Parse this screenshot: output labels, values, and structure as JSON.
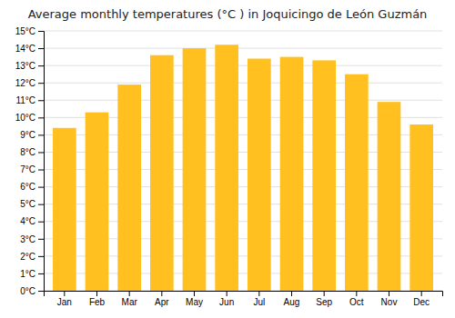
{
  "chart_data": {
    "type": "bar",
    "title": "Average monthly temperatures (°C ) in Joquicingo de León Guzmán",
    "categories": [
      "Jan",
      "Feb",
      "Mar",
      "Apr",
      "May",
      "Jun",
      "Jul",
      "Aug",
      "Sep",
      "Oct",
      "Nov",
      "Dec"
    ],
    "values": [
      9.4,
      10.3,
      11.9,
      13.6,
      14.0,
      14.2,
      13.4,
      13.5,
      13.3,
      12.5,
      10.9,
      9.6
    ],
    "color": "#FFC020",
    "ylim": [
      0,
      15
    ],
    "yticks": [
      {
        "value": 0,
        "label": "0°C"
      },
      {
        "value": 1,
        "label": "1°C"
      },
      {
        "value": 2,
        "label": "2°C"
      },
      {
        "value": 3,
        "label": "3°C"
      },
      {
        "value": 4,
        "label": "4°C"
      },
      {
        "value": 5,
        "label": "5°C"
      },
      {
        "value": 6,
        "label": "6°C"
      },
      {
        "value": 7,
        "label": "7°C"
      },
      {
        "value": 8,
        "label": "8°C"
      },
      {
        "value": 9,
        "label": "9°C"
      },
      {
        "value": 10,
        "label": "10°C"
      },
      {
        "value": 11,
        "label": "11°C"
      },
      {
        "value": 12,
        "label": "12°C"
      },
      {
        "value": 13,
        "label": "13°C"
      },
      {
        "value": 14,
        "label": "14°C"
      },
      {
        "value": 15,
        "label": "15°C"
      }
    ],
    "grid": true
  }
}
